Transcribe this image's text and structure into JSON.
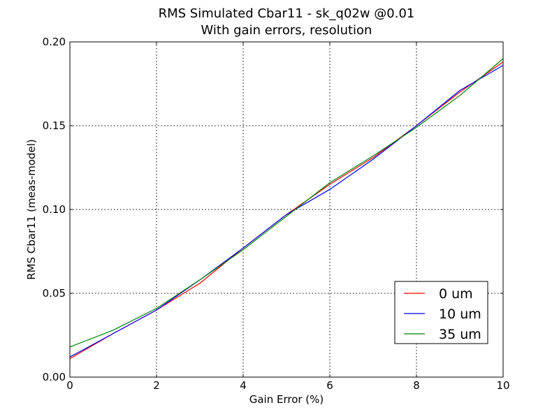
{
  "chart_data": {
    "type": "line",
    "title": "RMS Simulated Cbar11 - sk_q02w @0.01",
    "subtitle": "With gain errors, resolution",
    "xlabel": "Gain Error (%)",
    "ylabel": "RMS Cbar11 (meas-model)",
    "xlim": [
      0,
      10
    ],
    "ylim": [
      0,
      0.2
    ],
    "xticks": [
      0,
      2,
      4,
      6,
      8,
      10
    ],
    "xtick_labels": [
      "0",
      "2",
      "4",
      "6",
      "8",
      "10"
    ],
    "yticks": [
      0,
      0.05,
      0.1,
      0.15,
      0.2
    ],
    "ytick_labels": [
      "0.00",
      "0.05",
      "0.10",
      "0.15",
      "0.20"
    ],
    "grid": true,
    "legend_position": "lower-right",
    "x": [
      0,
      1,
      2,
      3,
      4,
      5,
      6,
      7,
      8,
      9,
      10
    ],
    "series": [
      {
        "name": "0 um",
        "color": "#ff0000",
        "values": [
          0.011,
          0.026,
          0.04,
          0.056,
          0.077,
          0.097,
          0.115,
          0.131,
          0.15,
          0.17,
          0.188
        ]
      },
      {
        "name": "10 um",
        "color": "#0000ff",
        "values": [
          0.012,
          0.026,
          0.04,
          0.058,
          0.077,
          0.097,
          0.112,
          0.13,
          0.15,
          0.171,
          0.186
        ]
      },
      {
        "name": "35 um",
        "color": "#008000",
        "values": [
          0.018,
          0.028,
          0.041,
          0.058,
          0.076,
          0.096,
          0.116,
          0.132,
          0.149,
          0.168,
          0.19
        ]
      }
    ]
  }
}
